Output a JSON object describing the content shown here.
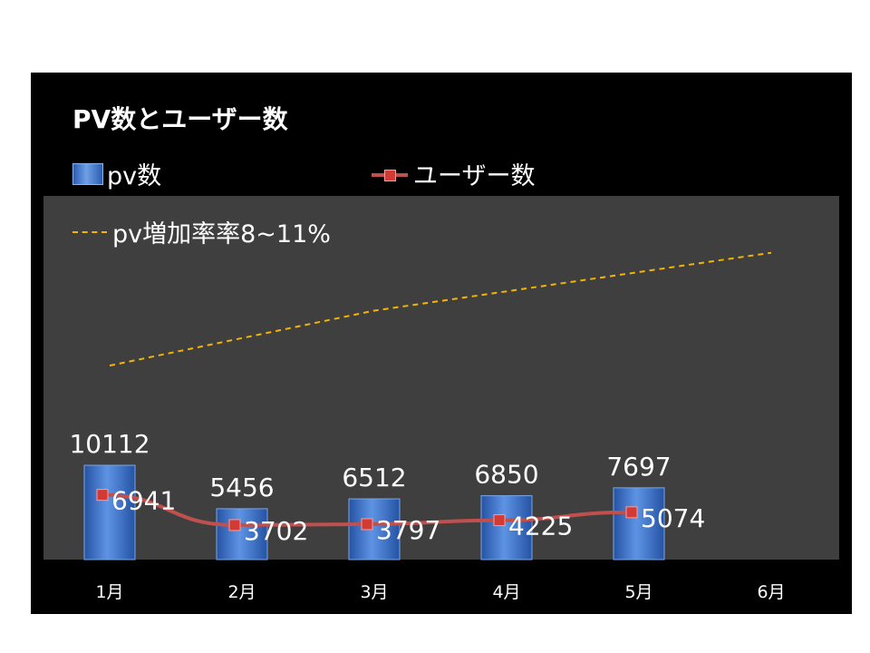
{
  "chart_data": {
    "type": "bar",
    "title": "PV数とユーザー数",
    "categories": [
      "1月",
      "2月",
      "3月",
      "4月",
      "5月",
      "6月"
    ],
    "series": [
      {
        "name": "pv数",
        "type": "bar",
        "values": [
          10112,
          5456,
          6512,
          6850,
          7697,
          null
        ],
        "color": "#3c78d8"
      },
      {
        "name": "ユーザー数",
        "type": "line",
        "values": [
          6941,
          3702,
          3797,
          4225,
          5074,
          null
        ],
        "color": "#c0504d"
      },
      {
        "name": "pv増加率率8~11%",
        "type": "line-dashed",
        "values": [
          20800,
          null,
          26700,
          null,
          null,
          32900
        ],
        "color": "#f5b400"
      }
    ],
    "ylim": [
      0,
      39000
    ],
    "legend_position": "top-left",
    "grid": false
  }
}
